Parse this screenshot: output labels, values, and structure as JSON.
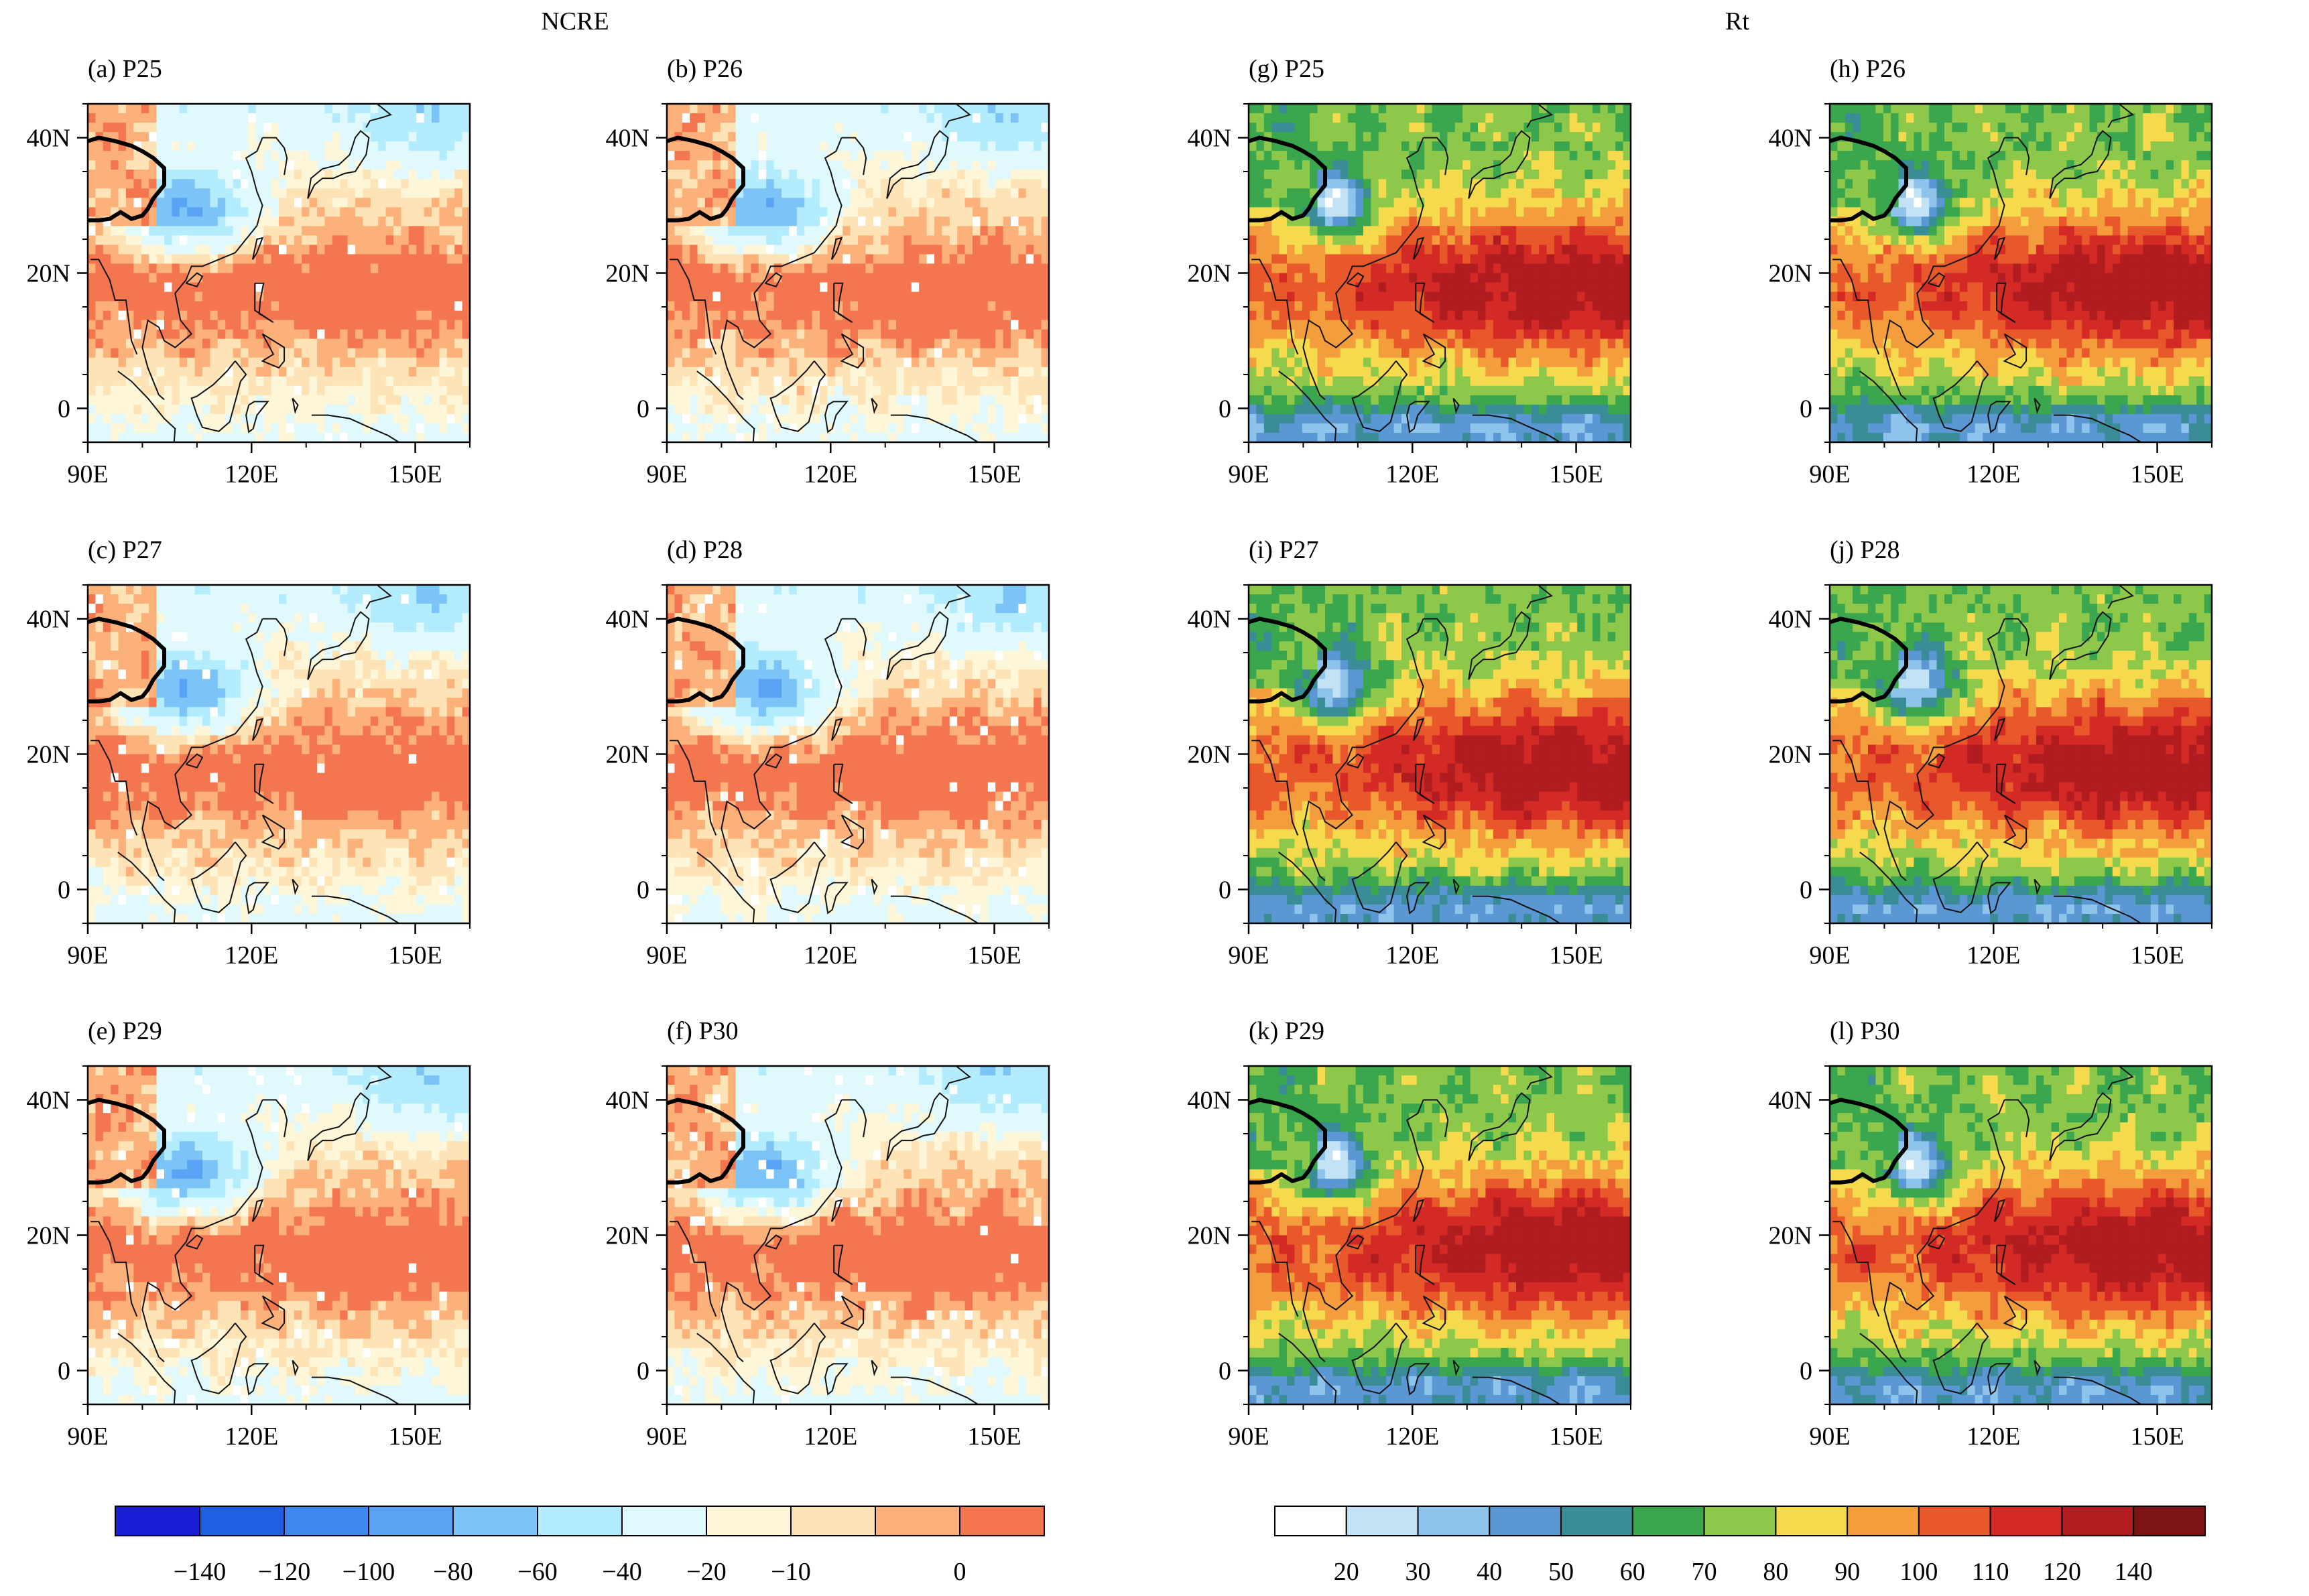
{
  "headers": {
    "left": "NCRE",
    "right": "Rt"
  },
  "lat_ticks": [
    "40N",
    "20N",
    "0"
  ],
  "lon_ticks": [
    "90E",
    "120E",
    "150E"
  ],
  "chart_data": [
    {
      "type": "heatmap",
      "title": "NCRE",
      "panels": [
        {
          "label": "(a) P25"
        },
        {
          "label": "(b) P26"
        },
        {
          "label": "(c) P27"
        },
        {
          "label": "(d) P28"
        },
        {
          "label": "(e) P29"
        },
        {
          "label": "(f) P30"
        }
      ],
      "x_ticks": [
        "90E",
        "120E",
        "150E"
      ],
      "y_ticks": [
        "40N",
        "20N",
        "0"
      ],
      "colorbar": {
        "colors": [
          "#1c1ed6",
          "#1f5fe0",
          "#3d87f0",
          "#5aa3f4",
          "#7cc3f8",
          "#b2ecfd",
          "#e0f9fd",
          "#fdf6d8",
          "#fde3b5",
          "#fbb179",
          "#f4764f"
        ],
        "tick_labels": [
          "−140",
          "−120",
          "−100",
          "−80",
          "−60",
          "−40",
          "−20",
          "−10",
          "0"
        ]
      }
    },
    {
      "type": "heatmap",
      "title": "Rt",
      "panels": [
        {
          "label": "(g) P25"
        },
        {
          "label": "(h) P26"
        },
        {
          "label": "(i) P27"
        },
        {
          "label": "(j) P28"
        },
        {
          "label": "(k) P29"
        },
        {
          "label": "(l) P30"
        }
      ],
      "x_ticks": [
        "90E",
        "120E",
        "150E"
      ],
      "y_ticks": [
        "40N",
        "20N",
        "0"
      ],
      "colorbar": {
        "colors": [
          "#ffffff",
          "#c3e2f6",
          "#8ec3ec",
          "#5a97d3",
          "#3a8c96",
          "#3aa64d",
          "#8ec84a",
          "#f4da4c",
          "#f49d3c",
          "#e9582b",
          "#d42a26",
          "#b01c1f",
          "#7d1518"
        ],
        "tick_labels": [
          "20",
          "30",
          "40",
          "50",
          "60",
          "70",
          "80",
          "90",
          "100",
          "110",
          "120",
          "140"
        ]
      }
    }
  ]
}
